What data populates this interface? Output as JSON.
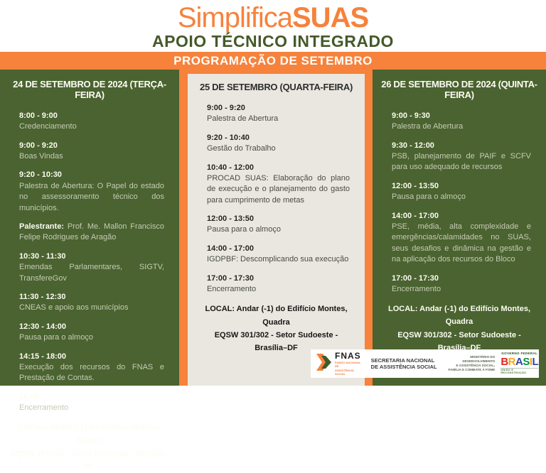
{
  "header": {
    "title_regular": "Simplifica",
    "title_bold": "SUAS",
    "subtitle": "APOIO TÉCNICO INTEGRADO",
    "banner": "PROGRAMAÇÃO DE SETEMBRO"
  },
  "colors": {
    "orange": "#F6823C",
    "dark_green": "#4A6330",
    "beige": "#E9E7DF",
    "subtitle_green": "#455929"
  },
  "columns": [
    {
      "theme": "green",
      "title": "24 DE SETEMBRO DE 2024 (TERÇA-FEIRA)",
      "items": [
        {
          "time": "8:00 - 9:00",
          "desc": "Credenciamento"
        },
        {
          "time": "9:00 - 9:20",
          "desc": "Boas Vindas"
        },
        {
          "time": "9:20 - 10:30",
          "desc": "Palestra de Abertura: O Papel do estado no assessoramento técnico dos municípios."
        },
        {
          "bold_prefix": "Palestrante:",
          "desc": "Prof. Me. Mallon Francisco Felipe Rodrigues de Aragão"
        },
        {
          "time": "10:30 - 11:30",
          "desc": "Emendas Parlamentares, SIGTV, TransfereGov"
        },
        {
          "time": "11:30 - 12:30",
          "desc": "CNEAS e apoio aos municípios"
        },
        {
          "time": "12:30 - 14:00",
          "desc": "Pausa para o almoço"
        },
        {
          "time": "14:15 - 18:00",
          "desc": "Execução dos recursos do FNAS e Prestação de Contas."
        },
        {
          "time": "18:00",
          "desc": "Encerramento"
        }
      ],
      "local_line1": "LOCAL: Andar (-1) do Edificio Montes, Quadra",
      "local_line2": "EQSW 301/302 - Setor Sudoeste - Brasília–DF"
    },
    {
      "theme": "beige",
      "title": "25 DE SETEMBRO (QUARTA-FEIRA)",
      "items": [
        {
          "time": "9:00 - 9:20",
          "desc": "Palestra de Abertura"
        },
        {
          "time": "9:20 - 10:40",
          "desc": "Gestão do Trabalho"
        },
        {
          "time": "10:40 - 12:00",
          "desc": "PROCAD SUAS: Elaboração do plano de execução e o planejamento do gasto para cumprimento de metas"
        },
        {
          "time": "12:00 - 13:50",
          "desc": "Pausa para o almoço"
        },
        {
          "time": "14:00 - 17:00",
          "desc": "IGDPBF: Descomplicando sua execução"
        },
        {
          "time": "17:00 - 17:30",
          "desc": "Encerramento"
        }
      ],
      "local_line1": "LOCAL: Andar (-1) do Edifício Montes, Quadra",
      "local_line2": "EQSW 301/302 - Setor Sudoeste - Brasília–DF"
    },
    {
      "theme": "green",
      "title": "26 DE SETEMBRO DE 2024 (QUINTA-FEIRA)",
      "items": [
        {
          "time": "9:00 - 9:30",
          "desc": "Palestra de Abertura"
        },
        {
          "time": "9:30 - 12:00",
          "desc": "PSB, planejamento de PAIF e SCFV para uso adequado de recursos"
        },
        {
          "time": "12:00 - 13:50",
          "desc": "Pausa para o almoço"
        },
        {
          "time": "14:00 - 17:00",
          "desc": "PSE, média, alta complexidade e emergências/calamidades no SUAS, seus desafios e dinâmica na gestão e na aplicação dos recursos do Bloco"
        },
        {
          "time": "17:00 - 17:30",
          "desc": "Encerramento"
        }
      ],
      "local_line1": "LOCAL: Andar (-1) do Edifício Montes, Quadra",
      "local_line2": "EQSW 301/302 - Setor Sudoeste - Brasília–DF"
    }
  ],
  "footer": {
    "fnas_name": "FNAS",
    "fnas_sub_lines": [
      "FUNDO NACIONAL DE",
      "ASSISTÊNCIA SOCIAL"
    ],
    "secretaria_lines": [
      "SECRETARIA NACIONAL",
      "DE ASSISTÊNCIA SOCIAL"
    ],
    "ministerio_lines": [
      "MINISTÉRIO DO",
      "DESENVOLVIMENTO",
      "E ASSISTÊNCIA SOCIAL,",
      "FAMÍLIA E COMBATE À FOME"
    ],
    "governo_top": "GOVERNO FEDERAL",
    "governo_brasil": "BRASIL",
    "governo_brasil_colors": [
      "#E52521",
      "#F9A51A",
      "#2C49A0",
      "#00923F",
      "#F9A51A",
      "#2C49A0"
    ],
    "governo_bottom": "UNIÃO E RECONSTRUÇÃO"
  }
}
